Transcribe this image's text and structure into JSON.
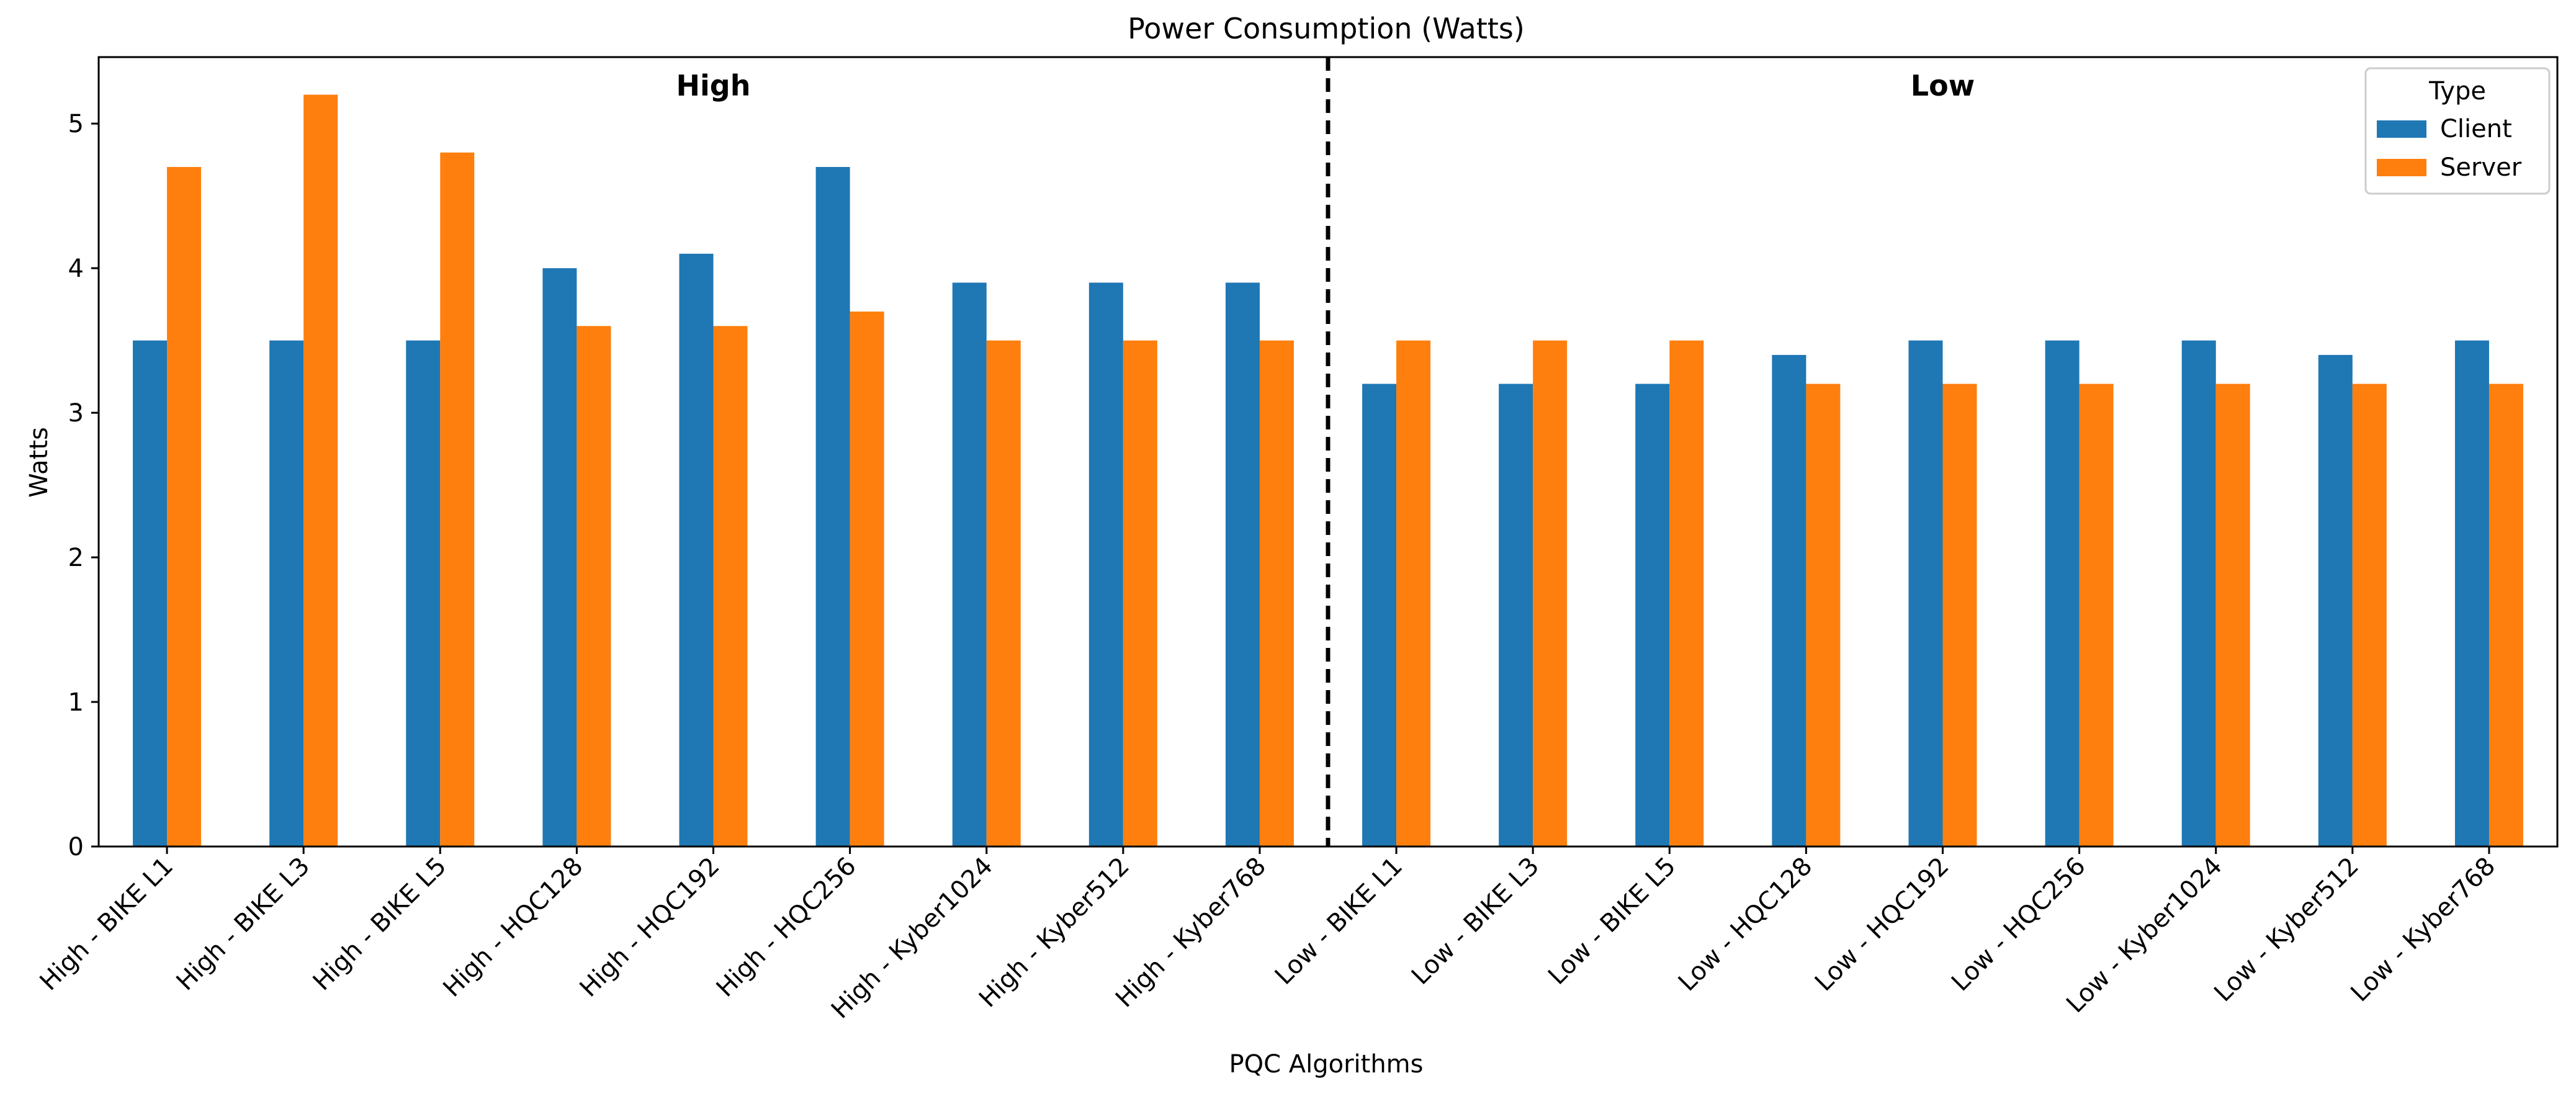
{
  "chart_data": {
    "type": "bar",
    "title": "Power Consumption (Watts)",
    "xlabel": "PQC Algorithms",
    "ylabel": "Watts",
    "ylim": [
      0,
      5.46
    ],
    "yticks": [
      0,
      1,
      2,
      3,
      4,
      5
    ],
    "grid": false,
    "categories": [
      "High - BIKE L1",
      "High - BIKE L3",
      "High - BIKE L5",
      "High - HQC128",
      "High - HQC192",
      "High - HQC256",
      "High - Kyber1024",
      "High - Kyber512",
      "High - Kyber768",
      "Low - BIKE L1",
      "Low - BIKE L3",
      "Low - BIKE L5",
      "Low - HQC128",
      "Low - HQC192",
      "Low - HQC256",
      "Low - Kyber1024",
      "Low - Kyber512",
      "Low - Kyber768"
    ],
    "series": [
      {
        "name": "Client",
        "color": "#1f77b4",
        "values": [
          3.5,
          3.5,
          3.5,
          4.0,
          4.1,
          4.7,
          3.9,
          3.9,
          3.9,
          3.2,
          3.2,
          3.2,
          3.4,
          3.5,
          3.5,
          3.5,
          3.4,
          3.5
        ]
      },
      {
        "name": "Server",
        "color": "#ff7f0e",
        "values": [
          4.7,
          5.2,
          4.8,
          3.6,
          3.6,
          3.7,
          3.5,
          3.5,
          3.5,
          3.5,
          3.5,
          3.5,
          3.2,
          3.2,
          3.2,
          3.2,
          3.2,
          3.2
        ]
      }
    ],
    "legend": {
      "title": "Type",
      "position": "top-right"
    },
    "groups": [
      {
        "label": "High",
        "start": 0,
        "end": 8
      },
      {
        "label": "Low",
        "start": 9,
        "end": 17
      }
    ],
    "divider": {
      "between": [
        8,
        9
      ],
      "style": "dashed"
    }
  }
}
